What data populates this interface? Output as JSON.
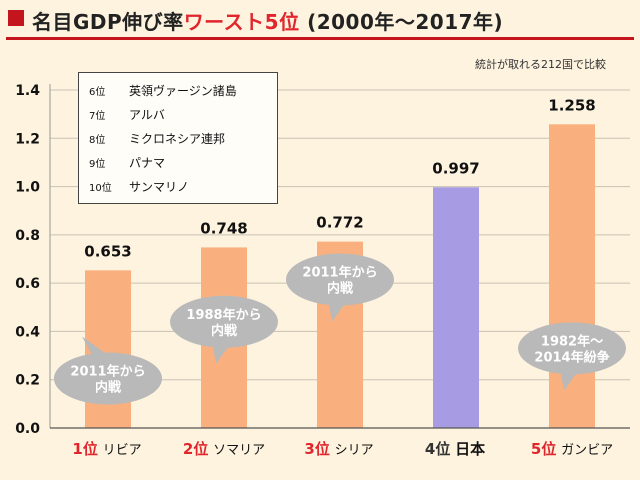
{
  "header": {
    "title_prefix": "名目GDP伸び率",
    "title_highlight": "ワースト5位",
    "title_suffix": "(2000年～2017年)"
  },
  "note": "統計が取れる212国で比較",
  "legend": [
    {
      "rank": "6位",
      "name": "英領ヴァージン諸島"
    },
    {
      "rank": "7位",
      "name": "アルバ"
    },
    {
      "rank": "8位",
      "name": "ミクロネシア連邦"
    },
    {
      "rank": "9位",
      "name": "パナマ"
    },
    {
      "rank": "10位",
      "name": "サンマリノ"
    }
  ],
  "categories": [
    {
      "rank": "1位",
      "name": "リビア"
    },
    {
      "rank": "2位",
      "name": "ソマリア"
    },
    {
      "rank": "3位",
      "name": "シリア"
    },
    {
      "rank": "4位",
      "name": "日本"
    },
    {
      "rank": "5位",
      "name": "ガンビア"
    }
  ],
  "colors": {
    "bar": "#f9b07e",
    "japan_bar": "#a79ce4",
    "grid": "#c9c1b3",
    "callout": "#b9b9b9",
    "callout_text": "#ffffff",
    "accent": "#e0262c"
  },
  "chart_data": {
    "type": "bar",
    "categories": [
      "1位 リビア",
      "2位 ソマリア",
      "3位 シリア",
      "4位 日本",
      "5位 ガンビア"
    ],
    "values": [
      0.653,
      0.748,
      0.772,
      0.997,
      1.258
    ],
    "value_labels": [
      "0.653",
      "0.748",
      "0.772",
      "0.997",
      "1.258"
    ],
    "ylim": [
      0,
      1.4
    ],
    "yticks": [
      0.0,
      0.2,
      0.4,
      0.6,
      0.8,
      1.0,
      1.2,
      1.4
    ],
    "ytick_labels": [
      "0.0",
      "0.2",
      "0.4",
      "0.6",
      "0.8",
      "1.0",
      "1.2",
      "1.4"
    ],
    "highlight_index": 3,
    "grid": true,
    "annotations": [
      {
        "category_index": 0,
        "text": "2011年から\n内戦",
        "y_value": 0.205,
        "tail": "up"
      },
      {
        "category_index": 1,
        "text": "1988年から\n内戦",
        "y_value": 0.44,
        "tail": "down"
      },
      {
        "category_index": 2,
        "text": "2011年から\n内戦",
        "y_value": 0.615,
        "tail": "down"
      },
      {
        "category_index": 4,
        "text": "1982年～\n2014年紛争",
        "y_value": 0.33,
        "tail": "down"
      }
    ]
  }
}
